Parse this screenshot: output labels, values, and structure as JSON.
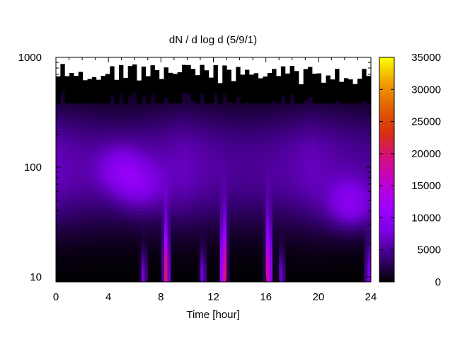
{
  "chart_data": {
    "type": "heatmap",
    "title": "dN / d log d (5/9/1)",
    "xlabel": "Time [hour]",
    "ylabel": "",
    "xlim": [
      0,
      24
    ],
    "ylim": [
      9,
      1000
    ],
    "y_scale": "log",
    "x_ticks": [
      0,
      4,
      8,
      12,
      16,
      20,
      24
    ],
    "x_tick_labels": [
      "0",
      "4",
      "8",
      "12",
      "16",
      "20",
      "24"
    ],
    "y_ticks": [
      10,
      100,
      1000
    ],
    "y_tick_labels": [
      "10",
      "100",
      "1000"
    ],
    "colorbar": {
      "range": [
        0,
        35000
      ],
      "ticks": [
        0,
        5000,
        10000,
        15000,
        20000,
        25000,
        30000,
        35000
      ],
      "tick_labels": [
        "0",
        "5000",
        "10000",
        "15000",
        "20000",
        "25000",
        "30000",
        "35000"
      ],
      "palette": [
        "#000000",
        "#3a007a",
        "#7a00e0",
        "#9e00ff",
        "#c000d0",
        "#d41080",
        "#d83010",
        "#e06000",
        "#f0a000",
        "#ffff00"
      ]
    },
    "features": [
      {
        "kind": "background_band",
        "t0": 0,
        "t1": 24,
        "d0": 25,
        "d1": 400,
        "value": 6500
      },
      {
        "kind": "blob",
        "t": 5,
        "d": 95,
        "value": 11000
      },
      {
        "kind": "blob",
        "t": 6.5,
        "d": 65,
        "value": 10000
      },
      {
        "kind": "blob",
        "t": 22.5,
        "d": 45,
        "value": 12500
      },
      {
        "kind": "burst",
        "t": 8.4,
        "d_peak": 10,
        "d_top": 35,
        "value": 20000
      },
      {
        "kind": "burst",
        "t": 12.8,
        "d_peak": 10,
        "d_top": 40,
        "value": 22000
      },
      {
        "kind": "burst",
        "t": 16.2,
        "d_peak": 10,
        "d_top": 40,
        "value": 19500
      },
      {
        "kind": "burst",
        "t": 6.7,
        "d_peak": 10,
        "d_top": 20,
        "value": 8000
      },
      {
        "kind": "burst",
        "t": 11.2,
        "d_peak": 10,
        "d_top": 20,
        "value": 8000
      },
      {
        "kind": "burst",
        "t": 17.2,
        "d_peak": 10,
        "d_top": 20,
        "value": 7500
      },
      {
        "kind": "burst",
        "t": 23.8,
        "d_peak": 10,
        "d_top": 25,
        "value": 9000
      }
    ],
    "grid": false,
    "legend": "colorbar-right"
  }
}
